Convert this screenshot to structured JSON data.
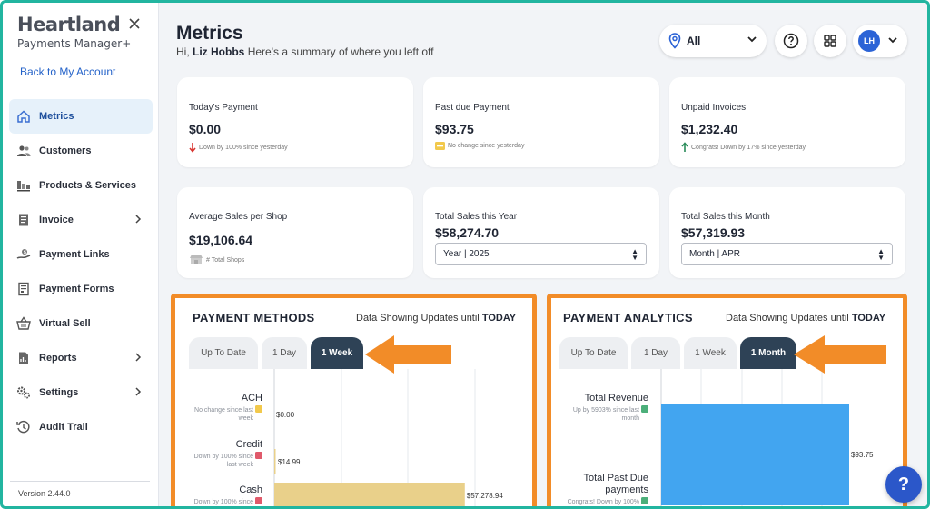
{
  "brand": {
    "name": "Heartland",
    "subtitle": "Payments Manager+"
  },
  "sidebar": {
    "back_link": "Back to My Account",
    "items": [
      {
        "label": "Metrics",
        "icon": "home-icon",
        "active": true,
        "chevron": false
      },
      {
        "label": "Customers",
        "icon": "users-icon",
        "active": false,
        "chevron": false
      },
      {
        "label": "Products & Services",
        "icon": "products-icon",
        "active": false,
        "chevron": false
      },
      {
        "label": "Invoice",
        "icon": "invoice-icon",
        "active": false,
        "chevron": true
      },
      {
        "label": "Payment Links",
        "icon": "payment-link-icon",
        "active": false,
        "chevron": false
      },
      {
        "label": "Payment Forms",
        "icon": "form-icon",
        "active": false,
        "chevron": false
      },
      {
        "label": "Virtual Sell",
        "icon": "basket-icon",
        "active": false,
        "chevron": false
      },
      {
        "label": "Reports",
        "icon": "reports-icon",
        "active": false,
        "chevron": true
      },
      {
        "label": "Settings",
        "icon": "gears-icon",
        "active": false,
        "chevron": true
      },
      {
        "label": "Audit Trail",
        "icon": "history-icon",
        "active": false,
        "chevron": false
      }
    ],
    "version": "Version 2.44.0"
  },
  "header": {
    "title": "Metrics",
    "greeting_prefix": "Hi,",
    "user_name": "Liz Hobbs",
    "greeting_suffix": "Here's a summary of where you left off",
    "location_value": "All",
    "avatar_initials": "LH"
  },
  "cards": {
    "todays_payment": {
      "label": "Today's Payment",
      "value": "$0.00",
      "sub": "Down by 100% since yesterday"
    },
    "past_due": {
      "label": "Past due Payment",
      "value": "$93.75",
      "sub": "No change since yesterday"
    },
    "unpaid": {
      "label": "Unpaid Invoices",
      "value": "$1,232.40",
      "sub": "Congrats! Down by 17% since yesterday"
    },
    "avg_sales": {
      "label": "Average Sales per Shop",
      "value": "$19,106.64",
      "sub": "# Total Shops"
    },
    "year_sales": {
      "label": "Total Sales this Year",
      "value": "$58,274.70",
      "select": "Year | 2025"
    },
    "month_sales": {
      "label": "Total Sales this Month",
      "value": "$57,319.93",
      "select": "Month | APR"
    }
  },
  "payment_methods": {
    "title": "PAYMENT METHODS",
    "note_prefix": "Data Showing Updates until",
    "note_bold": "TODAY",
    "tabs": [
      "Up To Date",
      "1 Day",
      "1 Week"
    ],
    "active_tab": 2
  },
  "payment_analytics": {
    "title": "PAYMENT ANALYTICS",
    "note_prefix": "Data Showing Updates until",
    "note_bold": "TODAY",
    "tabs": [
      "Up To Date",
      "1 Day",
      "1 Week",
      "1 Month"
    ],
    "active_tab": 3
  },
  "chart_data": [
    {
      "type": "bar",
      "orientation": "horizontal",
      "title": "PAYMENT METHODS",
      "categories": [
        "ACH",
        "Credit",
        "Cash"
      ],
      "values": [
        0.0,
        14.99,
        57278.94
      ],
      "value_labels": [
        "$0.00",
        "$14.99",
        "$57,278.94"
      ],
      "sublabels": [
        "No change since last week",
        "Down by 100% since last week",
        "Down by 100% since last week"
      ],
      "xlim": [
        0,
        80000
      ],
      "bar_colors": [
        "#e9d08a",
        "#e9d08a",
        "#e9d08a"
      ]
    },
    {
      "type": "bar",
      "orientation": "horizontal",
      "title": "PAYMENT ANALYTICS",
      "categories": [
        "Total Revenue",
        "Total Past Due payments"
      ],
      "values": [
        93.75,
        0
      ],
      "value_labels": [
        "$93.75",
        ""
      ],
      "sublabels": [
        "Up by 5903% since last month",
        "Congrats! Down by 100% since last month"
      ],
      "xlim": [
        0,
        93.75
      ],
      "bar_colors": [
        "#42a5f0",
        "#42a5f0"
      ]
    }
  ],
  "colors": {
    "accent": "#2563c9",
    "highlight": "#f28c28",
    "frame": "#22b5a0"
  }
}
